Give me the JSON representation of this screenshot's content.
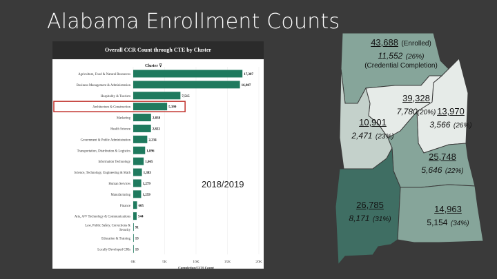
{
  "slide": {
    "title": "Alabama Enrollment Counts",
    "year": "2018/2019"
  },
  "panel": {
    "header": "Overall CCR Count through CTE by Cluster",
    "cluster_label": "Cluster"
  },
  "chart_data": {
    "type": "bar",
    "orientation": "horizontal",
    "title": "Overall CCR Count through CTE by Cluster",
    "xlabel": "Completion/CCR Count",
    "ylabel": "Cluster",
    "xlim": [
      0,
      20000
    ],
    "xticks": [
      "0K",
      "5K",
      "10K",
      "15K",
      "20K"
    ],
    "highlighted": "Architecture & Construction",
    "bar_color": "#1f7a5e",
    "highlight_color": "#c0302a",
    "categories": [
      "Agriculture, Food & Natural Resources",
      "Business Management & Administration",
      "Hospitality & Tourism",
      "Architecture & Construction",
      "Marketing",
      "Health Science",
      "Government & Public Administration",
      "Transportation, Distribution & Logistics",
      "Information Technology",
      "Science, Technology, Engineering & Math",
      "Human Services",
      "Manufacturing",
      "Finance",
      "Arts, A/V Technology & Communications",
      "Law, Public Safety, Corrections & Security",
      "Education & Training",
      "Locally Developed CRIs"
    ],
    "values": [
      17387,
      16987,
      7515,
      5399,
      2838,
      2822,
      2234,
      1896,
      1665,
      1383,
      1279,
      1259,
      605,
      544,
      91,
      13,
      13
    ],
    "value_labels": [
      "17,387",
      "16,987",
      "7,515",
      "5,399",
      "2,838",
      "2,822",
      "2,234",
      "1,896",
      "1,665",
      "1,383",
      "1,279",
      "1,259",
      "605",
      "544",
      "91",
      "13",
      "13"
    ]
  },
  "map": {
    "colors": {
      "dark": "#3f6e63",
      "mid": "#86a59a",
      "light": "#c4d1cb",
      "lightest": "#e6ebe8"
    },
    "regions": [
      {
        "enrolled": "43,688",
        "enrolled_note": "(Enrolled)",
        "credential": "11,552",
        "pct": "(26%)",
        "credential_note": "(Credential Completion)"
      },
      {
        "enrolled": "39,328",
        "credential": "7,780",
        "pct": "(20%)"
      },
      {
        "enrolled": "13,970",
        "credential": "3,566",
        "pct": "(26%)"
      },
      {
        "enrolled": "10,901",
        "credential": "2,471",
        "pct": "(23%)"
      },
      {
        "enrolled": "25,748",
        "credential": "5,646",
        "pct": "(22%)"
      },
      {
        "enrolled": "26,785",
        "credential": "8,171",
        "pct": "(31%)"
      },
      {
        "enrolled": "14,963",
        "credential": "5,154",
        "pct": "(34%)"
      }
    ]
  }
}
